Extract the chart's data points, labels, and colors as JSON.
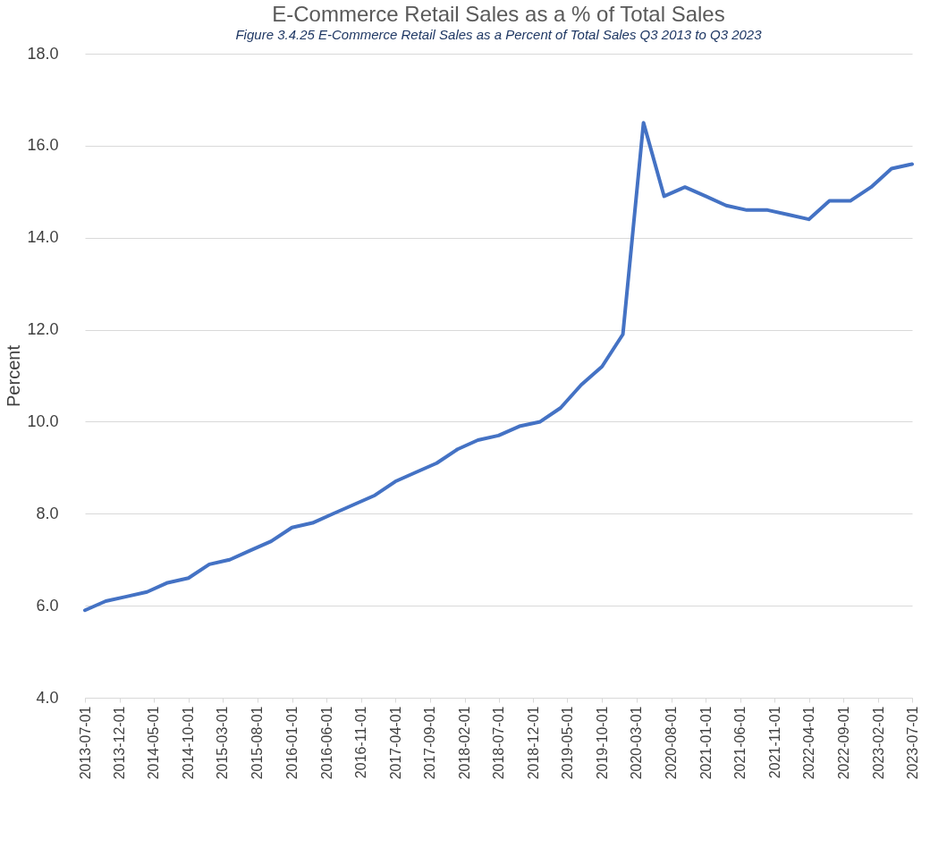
{
  "chart_data": {
    "type": "line",
    "title": "E-Commerce Retail Sales as a % of Total Sales",
    "annotations": [
      "Figure 3.4.25 E-Commerce Retail Sales as a Percent of Total Sales Q3 2013 to Q3 2023"
    ],
    "ylabel": "Percent",
    "x": [
      "2013-07-01",
      "2013-10-01",
      "2014-01-01",
      "2014-04-01",
      "2014-07-01",
      "2014-10-01",
      "2015-01-01",
      "2015-04-01",
      "2015-07-01",
      "2015-10-01",
      "2016-01-01",
      "2016-04-01",
      "2016-07-01",
      "2016-10-01",
      "2017-01-01",
      "2017-04-01",
      "2017-07-01",
      "2017-10-01",
      "2018-01-01",
      "2018-04-01",
      "2018-07-01",
      "2018-10-01",
      "2019-01-01",
      "2019-04-01",
      "2019-07-01",
      "2019-10-01",
      "2020-01-01",
      "2020-04-01",
      "2020-07-01",
      "2020-10-01",
      "2021-01-01",
      "2021-04-01",
      "2021-07-01",
      "2021-10-01",
      "2022-01-01",
      "2022-04-01",
      "2022-07-01",
      "2022-10-01",
      "2023-01-01",
      "2023-04-01",
      "2023-07-01"
    ],
    "series": [
      {
        "color": "#4472c4",
        "values": [
          5.9,
          6.1,
          6.2,
          6.3,
          6.5,
          6.6,
          6.9,
          7.0,
          7.2,
          7.4,
          7.7,
          7.8,
          8.0,
          8.2,
          8.4,
          8.7,
          8.9,
          9.1,
          9.4,
          9.6,
          9.7,
          9.9,
          10.0,
          10.3,
          10.8,
          11.2,
          11.9,
          16.5,
          14.9,
          15.1,
          14.9,
          14.7,
          14.6,
          14.6,
          14.5,
          14.4,
          14.8,
          14.8,
          15.1,
          15.5,
          15.6
        ]
      }
    ],
    "xlim": [
      "2013-07-01",
      "2023-07-01"
    ],
    "xticks": [
      "2013-07-01",
      "2013-12-01",
      "2014-05-01",
      "2014-10-01",
      "2015-03-01",
      "2015-08-01",
      "2016-01-01",
      "2016-06-01",
      "2016-11-01",
      "2017-04-01",
      "2017-09-01",
      "2018-02-01",
      "2018-07-01",
      "2018-12-01",
      "2019-05-01",
      "2019-10-01",
      "2020-03-01",
      "2020-08-01",
      "2021-01-01",
      "2021-06-01",
      "2021-11-01",
      "2022-04-01",
      "2022-09-01",
      "2023-02-01",
      "2023-07-01"
    ],
    "ylim": [
      4,
      18
    ],
    "yticks": [
      {
        "value": 4,
        "label": "4.0"
      },
      {
        "value": 6,
        "label": "6.0"
      },
      {
        "value": 8,
        "label": "8.0"
      },
      {
        "value": 10,
        "label": "10.0"
      },
      {
        "value": 12,
        "label": "12.0"
      },
      {
        "value": 14,
        "label": "14.0"
      },
      {
        "value": 16,
        "label": "16.0"
      },
      {
        "value": 18,
        "label": "18.0"
      }
    ],
    "grid": "y",
    "legend": false,
    "marker": "none",
    "line_style": "solid"
  }
}
